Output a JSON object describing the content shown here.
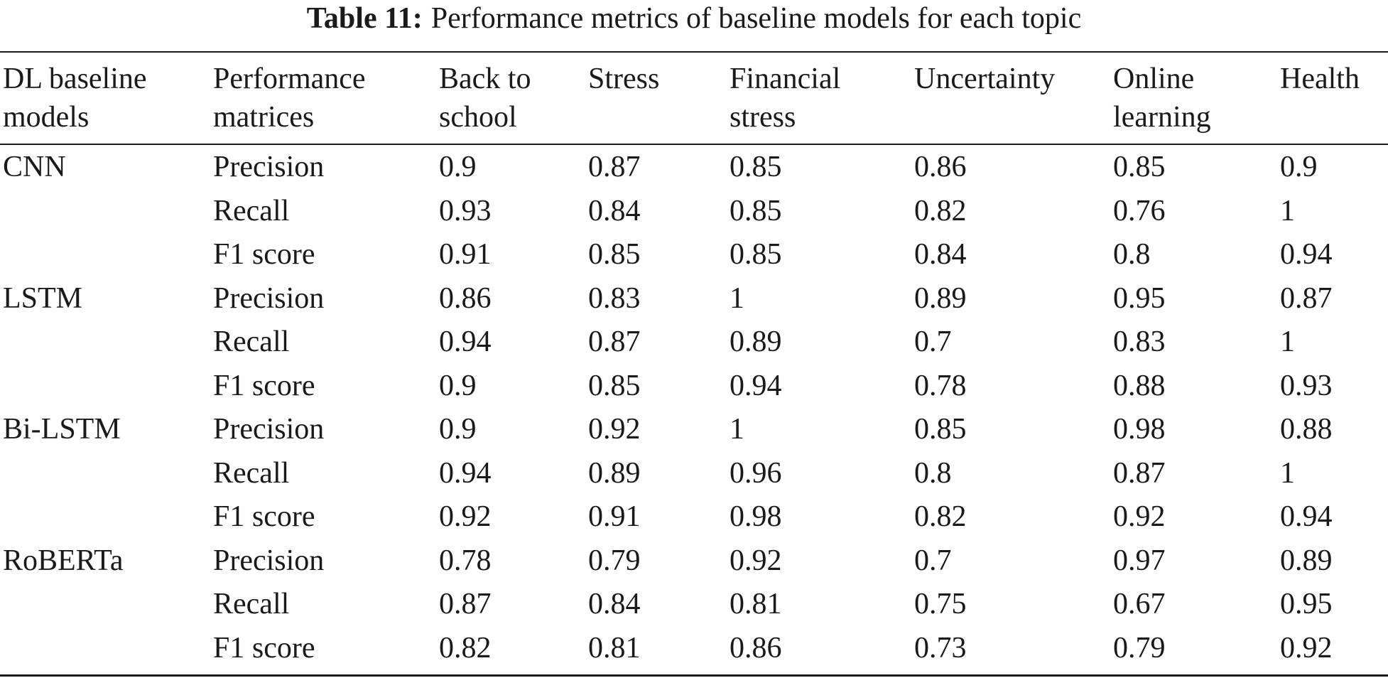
{
  "caption": {
    "label": "Table 11:",
    "text": "Performance metrics of baseline models for each topic"
  },
  "table": {
    "headers": [
      "DL baseline models",
      "Performance matrices",
      "Back to school",
      "Stress",
      "Financial stress",
      "Uncertainty",
      "Online learning",
      "Health"
    ],
    "rows": [
      [
        "CNN",
        "Precision",
        "0.9",
        "0.87",
        "0.85",
        "0.86",
        "0.85",
        "0.9"
      ],
      [
        "",
        "Recall",
        "0.93",
        "0.84",
        "0.85",
        "0.82",
        "0.76",
        "1"
      ],
      [
        "",
        "F1 score",
        "0.91",
        "0.85",
        "0.85",
        "0.84",
        "0.8",
        "0.94"
      ],
      [
        "LSTM",
        "Precision",
        "0.86",
        "0.83",
        "1",
        "0.89",
        "0.95",
        "0.87"
      ],
      [
        "",
        "Recall",
        "0.94",
        "0.87",
        "0.89",
        "0.7",
        "0.83",
        "1"
      ],
      [
        "",
        "F1 score",
        "0.9",
        "0.85",
        "0.94",
        "0.78",
        "0.88",
        "0.93"
      ],
      [
        "Bi-LSTM",
        "Precision",
        "0.9",
        "0.92",
        "1",
        "0.85",
        "0.98",
        "0.88"
      ],
      [
        "",
        "Recall",
        "0.94",
        "0.89",
        "0.96",
        "0.8",
        "0.87",
        "1"
      ],
      [
        "",
        "F1 score",
        "0.92",
        "0.91",
        "0.98",
        "0.82",
        "0.92",
        "0.94"
      ],
      [
        "RoBERTa",
        "Precision",
        "0.78",
        "0.79",
        "0.92",
        "0.7",
        "0.97",
        "0.89"
      ],
      [
        "",
        "Recall",
        "0.87",
        "0.84",
        "0.81",
        "0.75",
        "0.67",
        "0.95"
      ],
      [
        "",
        "F1 score",
        "0.82",
        "0.81",
        "0.86",
        "0.73",
        "0.79",
        "0.92"
      ]
    ]
  }
}
